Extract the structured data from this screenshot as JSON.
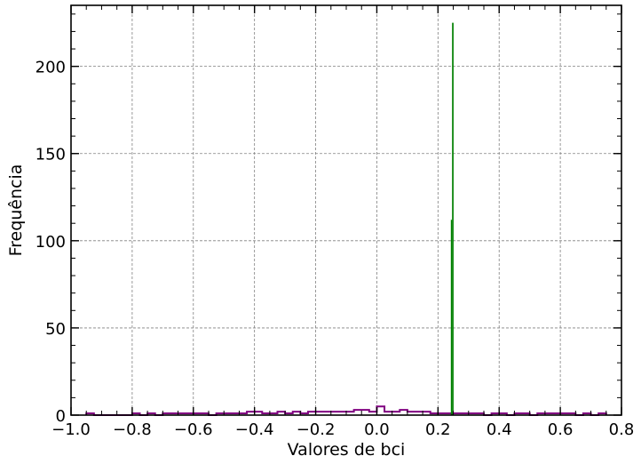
{
  "chart_data": {
    "type": "histogram",
    "xlabel": "Valores de bci",
    "ylabel": "Frequência",
    "xlim": [
      -1.0,
      0.8
    ],
    "ylim": [
      0,
      235
    ],
    "x_ticks": [
      -1.0,
      -0.8,
      -0.6,
      -0.4,
      -0.2,
      0.0,
      0.2,
      0.4,
      0.6,
      0.8
    ],
    "x_tick_labels": [
      "−1.0",
      "−0.8",
      "−0.6",
      "−0.4",
      "−0.2",
      "0.0",
      "0.2",
      "0.4",
      "0.6",
      "0.8"
    ],
    "y_ticks": [
      0,
      50,
      100,
      150,
      200
    ],
    "y_tick_labels": [
      "0",
      "50",
      "100",
      "150",
      "200"
    ],
    "grid": true,
    "legend": false,
    "series": [
      {
        "style": "step",
        "color": "#800080",
        "bin_width": 0.025,
        "bin_start": -0.95,
        "values": [
          1,
          0,
          0,
          0,
          0,
          0,
          1,
          0,
          1,
          0,
          1,
          1,
          1,
          1,
          1,
          1,
          0,
          1,
          1,
          1,
          1,
          2,
          2,
          1,
          1,
          2,
          1,
          2,
          1,
          2,
          2,
          2,
          2,
          2,
          2,
          3,
          3,
          2,
          5,
          2,
          2,
          3,
          2,
          2,
          2,
          1,
          1,
          1,
          1,
          1,
          1,
          1,
          0,
          1,
          1,
          0,
          1,
          1,
          0,
          1,
          1,
          1,
          1,
          1,
          0,
          1,
          0,
          1
        ]
      },
      {
        "style": "bar",
        "color": "#008000",
        "bins": [
          {
            "x_start": 0.242,
            "x_end": 0.246,
            "value": 112
          },
          {
            "x_start": 0.246,
            "x_end": 0.251,
            "value": 225
          }
        ]
      }
    ]
  }
}
